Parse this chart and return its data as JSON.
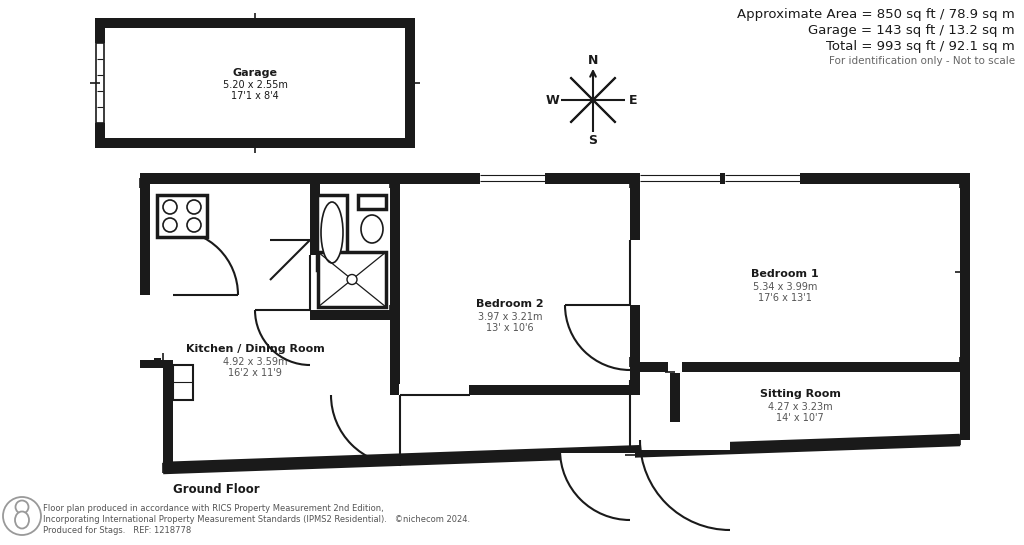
{
  "bg_color": "#ffffff",
  "wall_color": "#1a1a1a",
  "title_lines": [
    "Approximate Area = 850 sq ft / 78.9 sq m",
    "Garage = 143 sq ft / 13.2 sq m",
    "Total = 993 sq ft / 92.1 sq m"
  ],
  "subtitle": "For identification only - Not to scale",
  "footer_line1": "Floor plan produced in accordance with RICS Property Measurement 2nd Edition,",
  "footer_line2": "Incorporating International Property Measurement Standards (IPMS2 Residential).   ©nichecom 2024.",
  "footer_line3": "Produced for Stags.   REF: 1218778",
  "ground_floor_label": "Ground Floor"
}
